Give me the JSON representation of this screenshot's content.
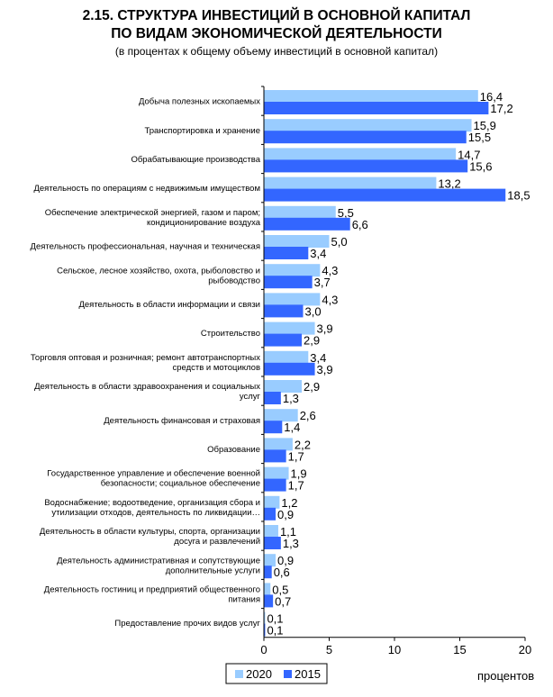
{
  "header": {
    "title_line1": "2.15. СТРУКТУРА ИНВЕСТИЦИЙ В ОСНОВНОЙ КАПИТАЛ",
    "title_line2": "ПО ВИДАМ ЭКОНОМИЧЕСКОЙ ДЕЯТЕЛЬНОСТИ",
    "subtitle": "(в процентах к общему объему инвестиций в основной капитал)"
  },
  "colors": {
    "series_2020": "#99ccff",
    "series_2015": "#3366ff"
  },
  "chart_data": {
    "type": "bar",
    "orientation": "horizontal",
    "title": "СТРУКТУРА ИНВЕСТИЦИЙ В ОСНОВНОЙ КАПИТАЛ ПО ВИДАМ ЭКОНОМИЧЕСКОЙ ДЕЯТЕЛЬНОСТИ",
    "xlabel": "процентов",
    "xlim": [
      0,
      20
    ],
    "xticks": [
      0,
      5,
      10,
      15,
      20
    ],
    "legend_position": "bottom",
    "categories": [
      [
        "Добыча полезных ископаемых"
      ],
      [
        "Транспортировка и хранение"
      ],
      [
        "Обрабатывающие производства"
      ],
      [
        "Деятельность по операциям с недвижимым имуществом"
      ],
      [
        "Обеспечение электрической энергией,  газом и паром;",
        "кондиционирование воздуха"
      ],
      [
        "Деятельность профессиональная,  научная и техническая"
      ],
      [
        "Сельское, лесное хозяйство, охота, рыболовство и",
        "рыбоводство"
      ],
      [
        "Деятельность в области информации и связи"
      ],
      [
        "Строительство"
      ],
      [
        "Торговля оптовая и розничная; ремонт автотранспортных",
        "средств и мотоциклов"
      ],
      [
        "Деятельность в области здравоохранения и социальных",
        "услуг"
      ],
      [
        "Деятельность финансовая и страховая"
      ],
      [
        "Образование"
      ],
      [
        "Государственное управление и обеспечение военной",
        "безопасности;  социальное обеспечение"
      ],
      [
        "Водоснабжение; водоотведение, организация сбора и",
        "утилизации отходов, деятельность по ликвидации…"
      ],
      [
        "Деятельность в области культуры, спорта, организации",
        "досуга и развлечений"
      ],
      [
        "Деятельность административная и сопутствующие",
        "дополнительные услуги"
      ],
      [
        "Деятельность гостиниц и предприятий общественного",
        "питания"
      ],
      [
        "Предоставление прочих видов услуг"
      ]
    ],
    "series": [
      {
        "name": "2020",
        "values": [
          16.4,
          15.9,
          14.7,
          13.2,
          5.5,
          5.0,
          4.3,
          4.3,
          3.9,
          3.4,
          2.9,
          2.6,
          2.2,
          1.9,
          1.2,
          1.1,
          0.9,
          0.5,
          0.1
        ],
        "labels": [
          "16,4",
          "15,9",
          "14,7",
          "13,2",
          "5,5",
          "5,0",
          "4,3",
          "4,3",
          "3,9",
          "3,4",
          "2,9",
          "2,6",
          "2,2",
          "1,9",
          "1,2",
          "1,1",
          "0,9",
          "0,5",
          "0,1"
        ]
      },
      {
        "name": "2015",
        "values": [
          17.2,
          15.5,
          15.6,
          18.5,
          6.6,
          3.4,
          3.7,
          3.0,
          2.9,
          3.9,
          1.3,
          1.4,
          1.7,
          1.7,
          0.9,
          1.3,
          0.6,
          0.7,
          0.1
        ],
        "labels": [
          "17,2",
          "15,5",
          "15,6",
          "18,5",
          "6,6",
          "3,4",
          "3,7",
          "3,0",
          "2,9",
          "3,9",
          "1,3",
          "1,4",
          "1,7",
          "1,7",
          "0,9",
          "1,3",
          "0,6",
          "0,7",
          "0,1"
        ]
      }
    ]
  }
}
